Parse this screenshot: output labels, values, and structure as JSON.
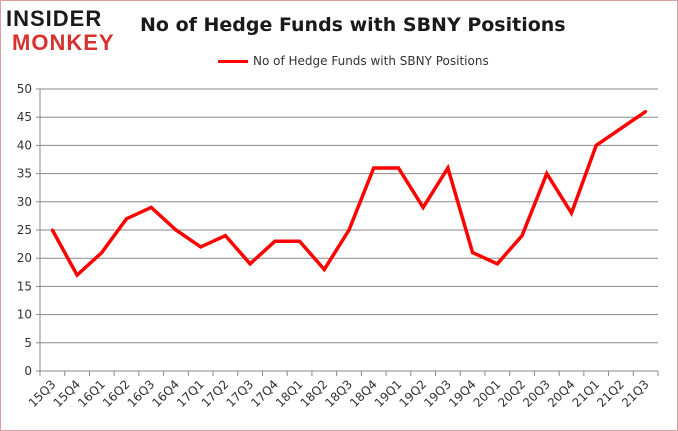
{
  "logo": {
    "line1": "INSIDER",
    "line2": "MONKEY"
  },
  "chart_data": {
    "type": "line",
    "title": "No of Hedge Funds with SBNY Positions",
    "categories": [
      "15Q3",
      "15Q4",
      "16Q1",
      "16Q2",
      "16Q3",
      "16Q4",
      "17Q1",
      "17Q2",
      "17Q3",
      "17Q4",
      "18Q1",
      "18Q2",
      "18Q3",
      "18Q4",
      "19Q1",
      "19Q2",
      "19Q3",
      "19Q4",
      "20Q1",
      "20Q2",
      "20Q3",
      "20Q4",
      "21Q1",
      "21Q2",
      "21Q3"
    ],
    "series": [
      {
        "name": "No of Hedge Funds with SBNY Positions",
        "color": "#ff0000",
        "values": [
          25,
          17,
          21,
          27,
          29,
          25,
          22,
          24,
          19,
          23,
          23,
          18,
          25,
          36,
          36,
          29,
          36,
          21,
          19,
          24,
          35,
          28,
          40,
          43,
          46
        ]
      }
    ],
    "ylim": [
      0,
      50
    ],
    "yticks": [
      0,
      5,
      10,
      15,
      20,
      25,
      30,
      35,
      40,
      45,
      50
    ],
    "grid": true,
    "legend": "top"
  }
}
